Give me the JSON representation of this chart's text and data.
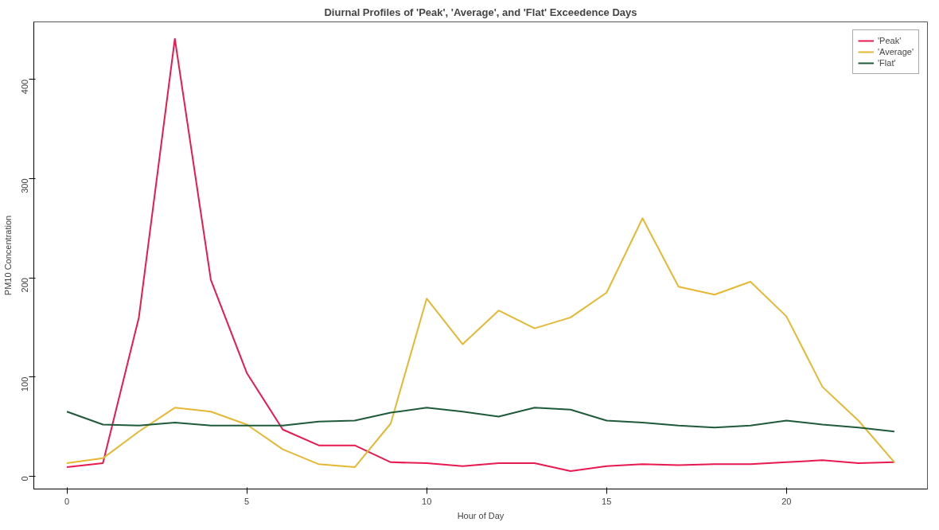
{
  "chart_data": {
    "type": "line",
    "title": "Diurnal Profiles of 'Peak', 'Average', and 'Flat' Exceedence Days",
    "xlabel": "Hour of Day",
    "ylabel": "PM10 Concentration",
    "x": [
      0,
      1,
      2,
      3,
      4,
      5,
      6,
      7,
      8,
      9,
      10,
      11,
      12,
      13,
      14,
      15,
      16,
      17,
      18,
      19,
      20,
      21,
      22,
      23
    ],
    "series": [
      {
        "name": "'Peak'",
        "color": "#e8194f",
        "values": [
          9,
          13,
          160,
          441,
          198,
          104,
          47,
          31,
          31,
          14,
          13,
          10,
          13,
          13,
          5,
          10,
          12,
          11,
          12,
          12,
          14,
          16,
          13,
          14
        ]
      },
      {
        "name": "'Average'",
        "color": "#e6b832",
        "values": [
          13,
          18,
          45,
          69,
          65,
          52,
          27,
          12,
          9,
          53,
          179,
          133,
          167,
          149,
          160,
          185,
          260,
          191,
          183,
          196,
          161,
          90,
          56,
          14
        ]
      },
      {
        "name": "'Flat'",
        "color": "#1f5a3a",
        "values": [
          65,
          52,
          51,
          54,
          51,
          51,
          51,
          55,
          56,
          64,
          69,
          65,
          60,
          69,
          67,
          56,
          54,
          51,
          49,
          51,
          56,
          52,
          49,
          45
        ]
      }
    ],
    "xlim": [
      -0.92,
      23.92
    ],
    "ylim": [
      -13,
      458
    ],
    "xticks": [
      0,
      5,
      10,
      15,
      20
    ],
    "yticks": [
      0,
      100,
      200,
      300,
      400
    ],
    "legend": "top right",
    "grid": false,
    "marker": "none",
    "line_style": "solid"
  }
}
